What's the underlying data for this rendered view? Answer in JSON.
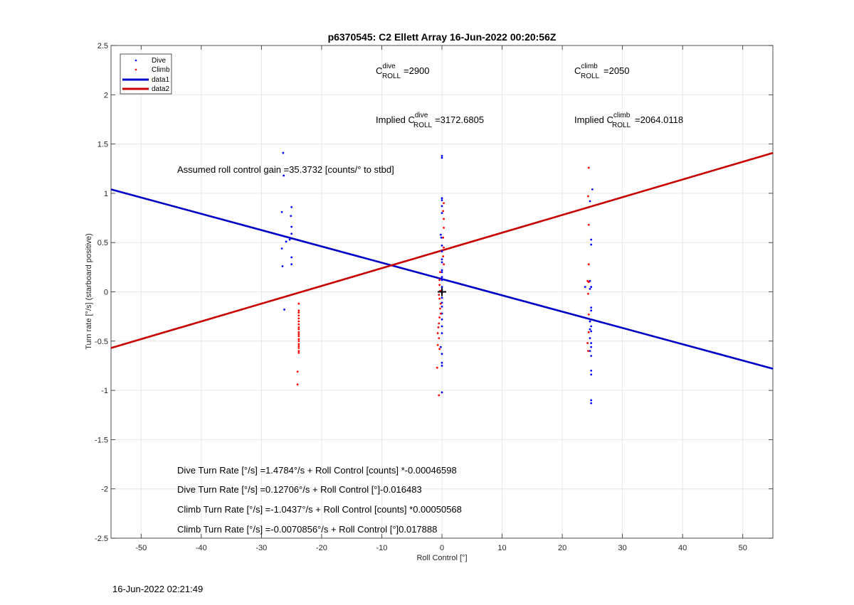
{
  "chart_data": {
    "type": "scatter",
    "title": "p6370545: C2 Ellett Array 16-Jun-2022 00:20:56Z",
    "xlabel": "Roll Control [°]",
    "ylabel": "Turn rate [°/s] (starboard positive)",
    "xlim": [
      -55,
      55
    ],
    "ylim": [
      -2.5,
      2.5
    ],
    "xticks": [
      -50,
      -40,
      -30,
      -20,
      -10,
      0,
      10,
      20,
      30,
      40,
      50
    ],
    "yticks": [
      -2.5,
      -2,
      -1.5,
      -1,
      -0.5,
      0,
      0.5,
      1,
      1.5,
      2,
      2.5
    ],
    "grid": true,
    "legend_position": "top-left",
    "series": [
      {
        "name": "Dive",
        "kind": "points",
        "color": "#0000ff",
        "points": [
          [
            -26.4,
            1.41
          ],
          [
            -26.3,
            1.18
          ],
          [
            -26.6,
            0.81
          ],
          [
            -25,
            0.86
          ],
          [
            -25.1,
            0.77
          ],
          [
            -25,
            0.66
          ],
          [
            -25,
            0.59
          ],
          [
            -25.3,
            0.53
          ],
          [
            -25.9,
            0.51
          ],
          [
            -26.6,
            0.44
          ],
          [
            -25,
            0.35
          ],
          [
            -26.5,
            0.26
          ],
          [
            -25,
            0.28
          ],
          [
            -26.2,
            -0.18
          ],
          [
            0,
            1.38
          ],
          [
            0,
            1.36
          ],
          [
            0,
            0.95
          ],
          [
            0,
            0.93
          ],
          [
            0,
            0.87
          ],
          [
            0,
            0.8
          ],
          [
            -0.2,
            0.58
          ],
          [
            -0.1,
            0.55
          ],
          [
            0,
            0.47
          ],
          [
            0,
            0.41
          ],
          [
            0,
            0.33
          ],
          [
            0,
            0.3
          ],
          [
            0,
            0.22
          ],
          [
            0,
            0.2
          ],
          [
            0,
            0.15
          ],
          [
            0,
            0.12
          ],
          [
            0,
            0.05
          ],
          [
            0,
            0.02
          ],
          [
            0,
            -0.01
          ],
          [
            0,
            -0.06
          ],
          [
            0,
            -0.11
          ],
          [
            0,
            -0.15
          ],
          [
            0,
            -0.22
          ],
          [
            0,
            -0.28
          ],
          [
            0,
            -0.35
          ],
          [
            0,
            -0.42
          ],
          [
            -0.2,
            -0.56
          ],
          [
            0,
            -0.63
          ],
          [
            0,
            -0.72
          ],
          [
            0,
            -0.75
          ],
          [
            0,
            -1.02
          ],
          [
            25,
            1.04
          ],
          [
            24.6,
            0.92
          ],
          [
            24.8,
            0.53
          ],
          [
            24.8,
            0.48
          ],
          [
            24.6,
            0.11
          ],
          [
            24.8,
            0.05
          ],
          [
            23.8,
            0.05
          ],
          [
            24.6,
            0.03
          ],
          [
            24.8,
            -0.16
          ],
          [
            24.8,
            -0.19
          ],
          [
            24.6,
            -0.3
          ],
          [
            24.8,
            -0.35
          ],
          [
            24.6,
            -0.38
          ],
          [
            24.8,
            -0.4
          ],
          [
            24.6,
            -0.47
          ],
          [
            24.8,
            -0.52
          ],
          [
            24.8,
            -0.56
          ],
          [
            24.6,
            -0.6
          ],
          [
            24.8,
            -0.65
          ],
          [
            24.8,
            -0.8
          ],
          [
            24.8,
            -0.84
          ],
          [
            24.8,
            -1.1
          ],
          [
            24.8,
            -1.13
          ]
        ]
      },
      {
        "name": "Climb",
        "kind": "points",
        "color": "#ff0000",
        "points": [
          [
            -23.8,
            -0.12
          ],
          [
            -23.8,
            -0.19
          ],
          [
            -23.8,
            -0.21
          ],
          [
            -23.8,
            -0.24
          ],
          [
            -23.8,
            -0.27
          ],
          [
            -23.8,
            -0.3
          ],
          [
            -23.8,
            -0.33
          ],
          [
            -23.8,
            -0.36
          ],
          [
            -23.8,
            -0.38
          ],
          [
            -23.8,
            -0.41
          ],
          [
            -23.8,
            -0.43
          ],
          [
            -23.8,
            -0.45
          ],
          [
            -23.8,
            -0.48
          ],
          [
            -23.8,
            -0.5
          ],
          [
            -23.8,
            -0.53
          ],
          [
            -23.8,
            -0.55
          ],
          [
            -23.8,
            -0.57
          ],
          [
            -23.8,
            -0.6
          ],
          [
            -23.8,
            -0.62
          ],
          [
            -24,
            -0.81
          ],
          [
            -24,
            -0.94
          ],
          [
            0.3,
            0.9
          ],
          [
            0.2,
            0.82
          ],
          [
            0.3,
            0.74
          ],
          [
            0.3,
            0.65
          ],
          [
            0.2,
            0.55
          ],
          [
            0.3,
            0.45
          ],
          [
            0.2,
            0.36
          ],
          [
            0.3,
            0.28
          ],
          [
            -0.3,
            0.2
          ],
          [
            -0.4,
            0.12
          ],
          [
            -0.4,
            0.07
          ],
          [
            -0.3,
            0.01
          ],
          [
            -0.5,
            -0.03
          ],
          [
            -0.4,
            -0.07
          ],
          [
            -0.2,
            -0.12
          ],
          [
            -0.3,
            -0.17
          ],
          [
            -0.2,
            -0.22
          ],
          [
            -0.4,
            -0.26
          ],
          [
            -0.5,
            -0.32
          ],
          [
            -0.6,
            -0.36
          ],
          [
            -0.7,
            -0.42
          ],
          [
            -0.5,
            -0.47
          ],
          [
            -0.7,
            -0.54
          ],
          [
            -0.4,
            -0.58
          ],
          [
            -0.8,
            -0.77
          ],
          [
            -0.5,
            -1.05
          ],
          [
            24.4,
            1.26
          ],
          [
            24.3,
            0.97
          ],
          [
            24.4,
            0.68
          ],
          [
            24.4,
            0.28
          ],
          [
            24.2,
            0.11
          ],
          [
            24.4,
            0.1
          ],
          [
            24.3,
            -0.02
          ],
          [
            24.4,
            -0.23
          ],
          [
            24.4,
            -0.41
          ],
          [
            24.2,
            -0.52
          ],
          [
            24.3,
            -0.6
          ]
        ]
      },
      {
        "name": "data1",
        "kind": "line",
        "color": "#0000c8",
        "from": [
          -55,
          1.04
        ],
        "to": [
          55,
          -0.78
        ]
      },
      {
        "name": "data2",
        "kind": "line",
        "color": "#c80000",
        "from": [
          -55,
          -0.57
        ],
        "to": [
          55,
          1.41
        ]
      }
    ],
    "marker": {
      "symbol": "+",
      "x": 0,
      "y": 0
    },
    "annotations": {
      "c_dive": {
        "base": "C",
        "sup": "dive",
        "sub": "ROLL",
        "value": "=2900"
      },
      "c_climb": {
        "base": "C",
        "sup": "climb",
        "sub": "ROLL",
        "value": "=2050"
      },
      "implied_dive": {
        "prefix": "Implied C",
        "sup": "dive",
        "sub": "ROLL",
        "value": "=3172.6805"
      },
      "implied_climb": {
        "prefix": "Implied C",
        "sup": "climb",
        "sub": "ROLL",
        "value": "=2064.0118"
      },
      "gain": "Assumed roll control gain =35.3732 [counts/° to stbd]",
      "eq1": "Dive Turn Rate [°/s] =1.4784°/s + Roll Control [counts] *-0.00046598",
      "eq2": "Dive Turn Rate [°/s] =0.12706°/s + Roll Control [°]-0.016483",
      "eq3": "Climb Turn Rate [°/s] =-1.0437°/s + Roll Control [counts] *0.00050568",
      "eq4": "Climb Turn Rate [°/s] =-0.0070856°/s + Roll Control [°]0.017888"
    }
  },
  "footer_timestamp": "16-Jun-2022 02:21:49"
}
